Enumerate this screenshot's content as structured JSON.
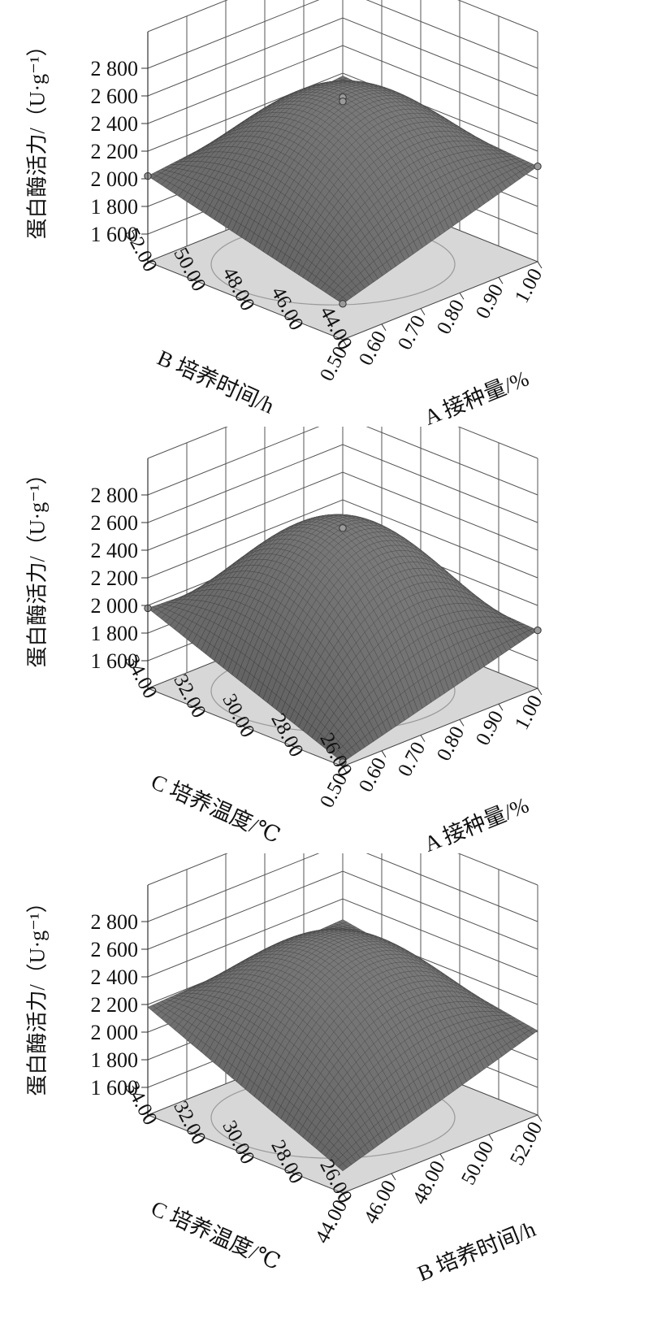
{
  "chart_data": [
    {
      "type": "surface3d",
      "zlabel": "蛋白酶活力/（U·g⁻¹）",
      "zticks": [
        "2 800",
        "2 600",
        "2 400",
        "2 200",
        "2 000",
        "1 800",
        "1 600"
      ],
      "zlim": [
        1400,
        2800
      ],
      "xaxis": {
        "label": "A 接种量/%",
        "ticks": [
          "0.50",
          "0.60",
          "0.70",
          "0.80",
          "0.90",
          "1.00"
        ],
        "range": [
          0.5,
          1.0
        ]
      },
      "yaxis": {
        "label": "B 培养时间/h",
        "ticks": [
          "44.00",
          "46.00",
          "48.00",
          "50.00",
          "52.00"
        ],
        "range": [
          44,
          52
        ]
      },
      "surface": {
        "peak": 2560,
        "front_corner": 1660,
        "left_corner": 2020,
        "right_corner": 2090,
        "back_corner": 2180
      },
      "points": [
        {
          "a": 0.5,
          "b": 44,
          "z": 1660
        },
        {
          "a": 0.5,
          "b": 52,
          "z": 2020
        },
        {
          "a": 1.0,
          "b": 44,
          "z": 2090
        },
        {
          "a": 0.75,
          "b": 48,
          "z": 2590
        },
        {
          "a": 0.75,
          "b": 48,
          "z": 2560
        }
      ]
    },
    {
      "type": "surface3d",
      "zlabel": "蛋白酶活力/（U·g⁻¹）",
      "zticks": [
        "2 800",
        "2 600",
        "2 400",
        "2 200",
        "2 000",
        "1 800",
        "1 600"
      ],
      "zlim": [
        1400,
        2800
      ],
      "xaxis": {
        "label": "A 接种量/%",
        "ticks": [
          "0.50",
          "0.60",
          "0.70",
          "0.80",
          "0.90",
          "1.00"
        ],
        "range": [
          0.5,
          1.0
        ]
      },
      "yaxis": {
        "label": "C 培养温度/℃",
        "ticks": [
          "26.00",
          "28.00",
          "30.00",
          "32.00",
          "34.00"
        ],
        "range": [
          26,
          34
        ]
      },
      "surface": {
        "peak": 2560,
        "front_corner": 1430,
        "left_corner": 1980,
        "right_corner": 1820,
        "back_corner": 1900
      },
      "points": [
        {
          "a": 0.5,
          "b": 26,
          "z": 1430
        },
        {
          "a": 0.5,
          "b": 34,
          "z": 1980
        },
        {
          "a": 1.0,
          "b": 26,
          "z": 1820
        },
        {
          "a": 0.75,
          "b": 30,
          "z": 2560
        }
      ]
    },
    {
      "type": "surface3d",
      "zlabel": "蛋白酶活力/（U·g⁻¹）",
      "zticks": [
        "2 800",
        "2 600",
        "2 400",
        "2 200",
        "2 000",
        "1 800",
        "1 600"
      ],
      "zlim": [
        1400,
        2800
      ],
      "xaxis": {
        "label": "B 培养时间/h",
        "ticks": [
          "44.00",
          "46.00",
          "48.00",
          "50.00",
          "52.00"
        ],
        "range": [
          44,
          52
        ]
      },
      "yaxis": {
        "label": "C 培养温度/℃",
        "ticks": [
          "26.00",
          "28.00",
          "30.00",
          "32.00",
          "34.00"
        ],
        "range": [
          26,
          34
        ]
      },
      "surface": {
        "peak": 2560,
        "front_corner": 1560,
        "left_corner": 2180,
        "right_corner": 2010,
        "back_corner": 2250
      },
      "points": []
    }
  ]
}
